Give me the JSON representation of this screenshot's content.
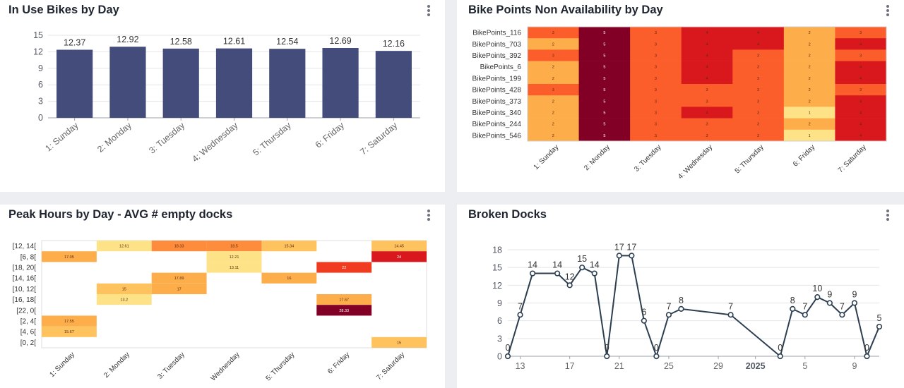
{
  "days": [
    "1: Sunday",
    "2: Monday",
    "3: Tuesday",
    "4: Wednesday",
    "5: Thursday",
    "6: Friday",
    "7: Saturday"
  ],
  "colors": {
    "bar": "#434c7a",
    "heat_1": "#fee287",
    "heat_2": "#fdae4b",
    "heat_3": "#fc5e2b",
    "heat_4": "#d9181e",
    "heat_5": "#820026",
    "line": "#2c3e50"
  },
  "panels": {
    "bikes": {
      "title": "In Use Bikes by Day",
      "menu_icon": "more-vertical-icon"
    },
    "availability": {
      "title": "Bike Points Non Availability by Day",
      "menu_icon": "more-vertical-icon"
    },
    "peak": {
      "title": "Peak Hours by Day - AVG # empty docks",
      "menu_icon": "more-vertical-icon"
    },
    "broken": {
      "title": "Broken Docks",
      "menu_icon": "more-vertical-icon"
    }
  },
  "chart_data": [
    {
      "type": "bar",
      "title": "In Use Bikes by Day",
      "categories": [
        "1: Sunday",
        "2: Monday",
        "3: Tuesday",
        "4: Wednesday",
        "5: Thursday",
        "6: Friday",
        "7: Saturday"
      ],
      "values": [
        12.37,
        12.92,
        12.58,
        12.61,
        12.54,
        12.69,
        12.16
      ],
      "value_labels": [
        "12.37",
        "12.92",
        "12.58",
        "12.61",
        "12.54",
        "12.69",
        "12.16"
      ],
      "ylim": [
        0,
        15
      ],
      "yticks": [
        "0",
        "3",
        "6",
        "9",
        "12",
        "15"
      ],
      "grid": true
    },
    {
      "type": "heatmap",
      "title": "Bike Points Non Availability by Day",
      "x": [
        "1: Sunday",
        "2: Monday",
        "3: Tuesday",
        "4: Wednesday",
        "5: Thursday",
        "6: Friday",
        "7: Saturday"
      ],
      "x_labels": [
        "1: Sunday",
        "2: Monday",
        "3: Tuesday",
        "4: Wednesday",
        "5: Thursday",
        "6: Friday",
        "7: Saturday"
      ],
      "y": [
        "BikePoints_116",
        "BikePoints_703",
        "BikePoints_392",
        "BikePoints_6",
        "BikePoints_199",
        "BikePoints_428",
        "BikePoints_373",
        "BikePoints_340",
        "BikePoints_244",
        "BikePoints_546"
      ],
      "values": [
        [
          3,
          5,
          3,
          4,
          4,
          2,
          3
        ],
        [
          2,
          5,
          3,
          4,
          4,
          2,
          4
        ],
        [
          3,
          5,
          3,
          4,
          3,
          2,
          3
        ],
        [
          2,
          5,
          3,
          4,
          3,
          2,
          4
        ],
        [
          2,
          5,
          3,
          4,
          3,
          2,
          4
        ],
        [
          3,
          5,
          3,
          3,
          3,
          2,
          3
        ],
        [
          2,
          5,
          3,
          3,
          3,
          2,
          4
        ],
        [
          2,
          5,
          3,
          4,
          3,
          1,
          4
        ],
        [
          2,
          5,
          3,
          3,
          3,
          2,
          4
        ],
        [
          2,
          5,
          3,
          3,
          3,
          1,
          4
        ]
      ],
      "value_labels": [
        [
          "3",
          "5",
          "3",
          "4",
          "4",
          "2",
          "3"
        ],
        [
          "2",
          "5",
          "3",
          "4",
          "4",
          "2",
          "4"
        ],
        [
          "3",
          "5",
          "3",
          "4",
          "3",
          "2",
          "3"
        ],
        [
          "2",
          "5",
          "3",
          "4",
          "3",
          "2",
          "4"
        ],
        [
          "2",
          "5",
          "3",
          "4",
          "3",
          "2",
          "4"
        ],
        [
          "3",
          "5",
          "3",
          "3",
          "3",
          "2",
          "3"
        ],
        [
          "2",
          "5",
          "3",
          "3",
          "3",
          "2",
          "4"
        ],
        [
          "2",
          "5",
          "3",
          "4",
          "3",
          "1",
          "4"
        ],
        [
          "2",
          "5",
          "3",
          "3",
          "3",
          "2",
          "4"
        ],
        [
          "2",
          "5",
          "3",
          "3",
          "3",
          "1",
          "4"
        ]
      ]
    },
    {
      "type": "heatmap",
      "title": "Peak Hours by Day - AVG # empty docks",
      "x": [
        "1: Sunday",
        "2: Monday",
        "3: Tuesday",
        "4: Wednesday",
        "5: Thursday",
        "6: Friday",
        "7: Saturday"
      ],
      "x_labels": [
        "1: Sunday",
        "2: Monday",
        "3: Tuesday",
        "Wednesday",
        "5: Thursday",
        "6: Friday",
        "7: Saturday"
      ],
      "y": [
        "[12, 14[",
        "[6, 8[",
        "[18, 20[",
        "[14, 16[",
        "[10, 12[",
        "[16, 18[",
        "[22, 0[",
        "[2, 4[",
        "[4, 6[",
        "[0, 2["
      ],
      "cells": [
        {
          "row": 0,
          "col": 1,
          "value": 12.61,
          "label": "12.61"
        },
        {
          "row": 0,
          "col": 2,
          "value": 18.33,
          "label": "18.33"
        },
        {
          "row": 0,
          "col": 3,
          "value": 18.5,
          "label": "18.5"
        },
        {
          "row": 0,
          "col": 4,
          "value": 15.34,
          "label": "15.34"
        },
        {
          "row": 0,
          "col": 6,
          "value": 14.45,
          "label": "14.45"
        },
        {
          "row": 1,
          "col": 0,
          "value": 17.05,
          "label": "17.05"
        },
        {
          "row": 1,
          "col": 3,
          "value": 12.21,
          "label": "12.21"
        },
        {
          "row": 1,
          "col": 6,
          "value": 24,
          "label": "24"
        },
        {
          "row": 2,
          "col": 3,
          "value": 13.11,
          "label": "13.11"
        },
        {
          "row": 2,
          "col": 5,
          "value": 22,
          "label": "22"
        },
        {
          "row": 3,
          "col": 2,
          "value": 17.89,
          "label": "17.89"
        },
        {
          "row": 3,
          "col": 4,
          "value": 16,
          "label": "16"
        },
        {
          "row": 4,
          "col": 1,
          "value": 15,
          "label": "15"
        },
        {
          "row": 4,
          "col": 2,
          "value": 17,
          "label": "17"
        },
        {
          "row": 5,
          "col": 1,
          "value": 13.2,
          "label": "13.2"
        },
        {
          "row": 5,
          "col": 5,
          "value": 17.67,
          "label": "17.67"
        },
        {
          "row": 6,
          "col": 5,
          "value": 28.33,
          "label": "28.33"
        },
        {
          "row": 7,
          "col": 0,
          "value": 17.55,
          "label": "17.55"
        },
        {
          "row": 8,
          "col": 0,
          "value": 15.67,
          "label": "15.67"
        },
        {
          "row": 9,
          "col": 6,
          "value": 15,
          "label": "15"
        }
      ]
    },
    {
      "type": "line",
      "title": "Broken Docks",
      "x": [
        "2024-12-12",
        "2024-12-13",
        "2024-12-14",
        "2024-12-16",
        "2024-12-17",
        "2024-12-18",
        "2024-12-19",
        "2024-12-20",
        "2024-12-21",
        "2024-12-22",
        "2024-12-23",
        "2024-12-24",
        "2024-12-25",
        "2024-12-26",
        "2024-12-30",
        "2025-01-03",
        "2025-01-04",
        "2025-01-05",
        "2025-01-06",
        "2025-01-07",
        "2025-01-08",
        "2025-01-09",
        "2025-01-10",
        "2025-01-11"
      ],
      "values": [
        0,
        7,
        14,
        14,
        12,
        15,
        14,
        0,
        17,
        17,
        6,
        0,
        7,
        8,
        7,
        0,
        8,
        7,
        10,
        9,
        7,
        9,
        0,
        5
      ],
      "value_labels": [
        "0",
        "7",
        "14",
        "14",
        "12",
        "15",
        "14",
        "0",
        "17",
        "17",
        "6",
        "0",
        "7",
        "8",
        "7",
        "0",
        "8",
        "7",
        "10",
        "9",
        "7",
        "9",
        "0",
        "5"
      ],
      "xticks": [
        "13",
        "17",
        "21",
        "25",
        "29",
        "2025",
        "5",
        "9"
      ],
      "ylim": [
        0,
        18
      ],
      "yticks": [
        "0",
        "3",
        "6",
        "9",
        "12",
        "15",
        "18"
      ],
      "grid": true
    }
  ]
}
